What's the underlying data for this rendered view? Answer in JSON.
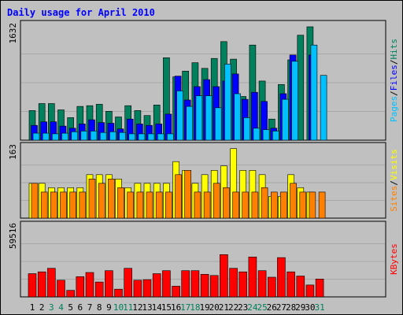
{
  "title": "Daily usage for April 2010",
  "colors": {
    "background": "#c0c0c0",
    "plot_bg": "#c0c0c0",
    "title": "#0000ff",
    "hits": "#00805c",
    "files": "#0000ff",
    "pages": "#00c0ff",
    "visits": "#ffff00",
    "sites": "#ff8000",
    "kbytes": "#ff0000",
    "weekend_label": "#00805c",
    "weekday_label": "#000000",
    "grid": "#a8a8a8"
  },
  "chart_data": [
    {
      "type": "bar",
      "panel": "hits-files-pages",
      "max_label": "1632",
      "ylim": [
        0,
        1632
      ],
      "legend": [
        "Pages",
        "/",
        "Files",
        "/",
        "Hits"
      ],
      "categories": [
        "1",
        "2",
        "3",
        "4",
        "5",
        "6",
        "7",
        "8",
        "9",
        "10",
        "11",
        "12",
        "13",
        "14",
        "15",
        "16",
        "17",
        "18",
        "19",
        "20",
        "21",
        "22",
        "23",
        "24",
        "25",
        "26",
        "27",
        "28",
        "29",
        "30",
        "31"
      ],
      "weekend_days": [
        "3",
        "4",
        "10",
        "11",
        "17",
        "18",
        "24",
        "25",
        "31"
      ],
      "series": [
        {
          "name": "Hits",
          "values": [
            420,
            520,
            520,
            430,
            320,
            480,
            490,
            510,
            410,
            330,
            490,
            420,
            350,
            500,
            1170,
            900,
            980,
            1100,
            1020,
            1160,
            1400,
            1150,
            620,
            1350,
            840,
            300,
            790,
            1140,
            1490,
            1610,
            null
          ]
        },
        {
          "name": "Files",
          "values": [
            210,
            260,
            260,
            200,
            170,
            230,
            290,
            250,
            240,
            160,
            300,
            230,
            210,
            230,
            370,
            910,
            570,
            760,
            860,
            760,
            840,
            940,
            580,
            680,
            550,
            170,
            660,
            1210,
            0,
            1210,
            null
          ]
        },
        {
          "name": "Pages",
          "values": [
            100,
            100,
            90,
            100,
            120,
            130,
            130,
            110,
            120,
            110,
            90,
            90,
            90,
            90,
            90,
            700,
            480,
            630,
            630,
            460,
            1080,
            660,
            320,
            170,
            150,
            130,
            580,
            1120,
            0,
            1350,
            920
          ]
        }
      ]
    },
    {
      "type": "bar",
      "panel": "visits-sites",
      "max_label": "163",
      "ylim": [
        0,
        163
      ],
      "legend": [
        "Sites",
        "/",
        "Visits"
      ],
      "series": [
        {
          "name": "Visits",
          "values": [
            80,
            80,
            70,
            70,
            70,
            70,
            100,
            100,
            100,
            90,
            70,
            80,
            80,
            80,
            80,
            130,
            110,
            80,
            100,
            110,
            120,
            160,
            110,
            110,
            100,
            50,
            50,
            100,
            70,
            60,
            null
          ]
        },
        {
          "name": "Sites",
          "values": [
            80,
            60,
            60,
            60,
            60,
            60,
            90,
            80,
            90,
            70,
            60,
            60,
            60,
            60,
            60,
            100,
            110,
            60,
            60,
            80,
            70,
            60,
            60,
            60,
            70,
            60,
            60,
            80,
            60,
            60,
            60
          ]
        }
      ]
    },
    {
      "type": "bar",
      "panel": "kbytes",
      "max_label": "59516",
      "ylim": [
        0,
        59516
      ],
      "legend": [
        "KBytes"
      ],
      "series": [
        {
          "name": "KBytes",
          "values": [
            19500,
            21000,
            24000,
            14000,
            5500,
            17000,
            20500,
            12500,
            22000,
            6500,
            24000,
            14000,
            14500,
            19500,
            22000,
            9000,
            22000,
            22000,
            19000,
            18000,
            35500,
            24000,
            21000,
            33500,
            22000,
            16500,
            33000,
            21000,
            17500,
            10000,
            15000
          ]
        }
      ]
    }
  ]
}
